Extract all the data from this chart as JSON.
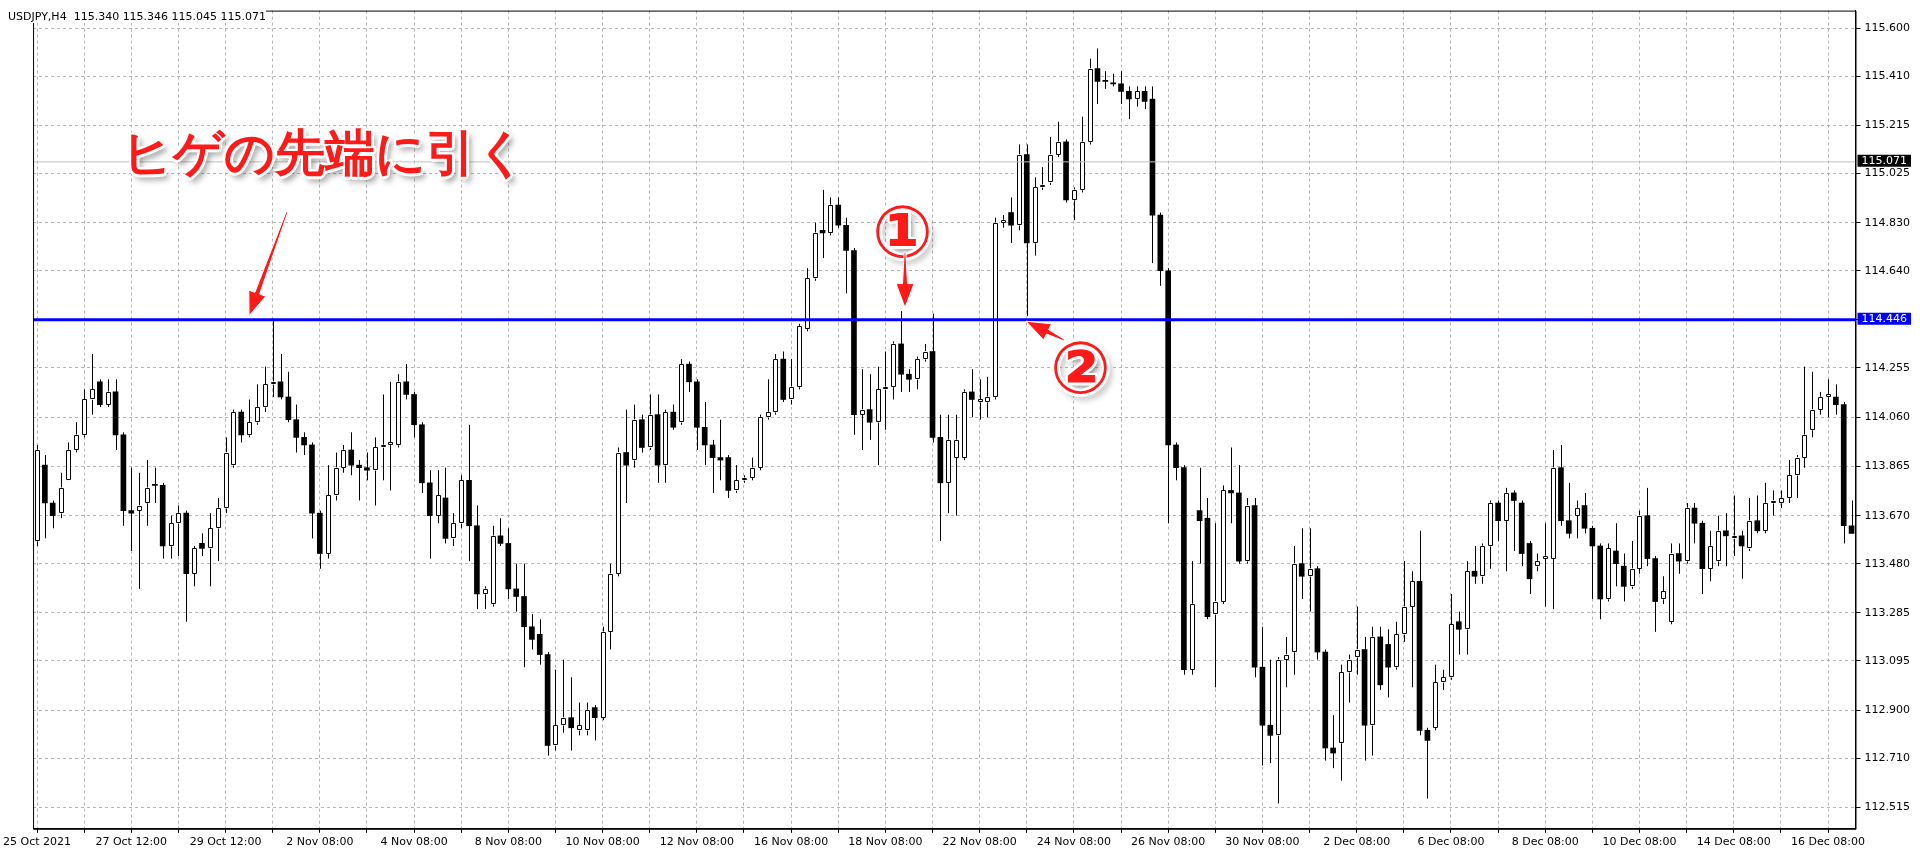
{
  "chart_data": {
    "type": "candlestick",
    "title": "USDJPY,H4",
    "subtitle": "115.340 115.346 115.045 115.071",
    "categories": [
      "25 Oct 2021",
      null,
      null,
      null,
      null,
      null,
      null,
      null,
      null,
      null,
      null,
      null,
      "27 Oct 12:00",
      null,
      null,
      null,
      null,
      null,
      null,
      null,
      null,
      null,
      null,
      null,
      "29 Oct 12:00",
      null,
      null,
      null,
      null,
      null,
      null,
      null,
      null,
      null,
      null,
      null,
      "2 Nov 08:00",
      null,
      null,
      null,
      null,
      null,
      null,
      null,
      null,
      null,
      null,
      null,
      "4 Nov 08:00",
      null,
      null,
      null,
      null,
      null,
      null,
      null,
      null,
      null,
      null,
      null,
      "8 Nov 08:00",
      null,
      null,
      null,
      null,
      null,
      null,
      null,
      null,
      null,
      null,
      null,
      "10 Nov 08:00",
      null,
      null,
      null,
      null,
      null,
      null,
      null,
      null,
      null,
      null,
      null,
      "12 Nov 08:00",
      null,
      null,
      null,
      null,
      null,
      null,
      null,
      null,
      null,
      null,
      null,
      "16 Nov 08:00",
      null,
      null,
      null,
      null,
      null,
      null,
      null,
      null,
      null,
      null,
      null,
      "18 Nov 08:00",
      null,
      null,
      null,
      null,
      null,
      null,
      null,
      null,
      null,
      null,
      null,
      "22 Nov 08:00",
      null,
      null,
      null,
      null,
      null,
      null,
      null,
      null,
      null,
      null,
      null,
      "24 Nov 08:00",
      null,
      null,
      null,
      null,
      null,
      null,
      null,
      null,
      null,
      null,
      null,
      "26 Nov 08:00",
      null,
      null,
      null,
      null,
      null,
      null,
      null,
      null,
      null,
      null,
      null,
      "30 Nov 08:00",
      null,
      null,
      null,
      null,
      null,
      null,
      null,
      null,
      null,
      null,
      null,
      "2 Dec 08:00",
      null,
      null,
      null,
      null,
      null,
      null,
      null,
      null,
      null,
      null,
      null,
      "6 Dec 08:00",
      null,
      null,
      null,
      null,
      null,
      null,
      null,
      null,
      null,
      null,
      null,
      "8 Dec 08:00",
      null,
      null,
      null,
      null,
      null,
      null,
      null,
      null,
      null,
      null,
      null,
      "10 Dec 08:00",
      null,
      null,
      null,
      null,
      null,
      null,
      null,
      null,
      null,
      null,
      null,
      "14 Dec 08:00",
      null,
      null,
      null,
      null,
      null,
      null,
      null,
      null,
      null,
      null,
      null,
      "16 Dec 08:00",
      null,
      null,
      null
    ],
    "series": [
      {
        "color": "#000000",
        "colors": [
          "#ffffff",
          "#000000",
          "#000000",
          "#ffffff",
          "#ffffff",
          "#ffffff",
          "#ffffff",
          "#ffffff",
          "#000000",
          "#ffffff",
          "#000000",
          "#000000",
          "#000000",
          "#ffffff",
          "#ffffff",
          "#000000",
          "#000000",
          "#ffffff",
          "#ffffff",
          "#000000",
          "#ffffff",
          "#000000",
          "#ffffff",
          "#ffffff",
          "#ffffff",
          "#ffffff",
          "#000000",
          "#ffffff",
          "#ffffff",
          "#ffffff",
          "#ffffff",
          "#000000",
          "#000000",
          "#000000",
          "#000000",
          "#000000",
          "#000000",
          "#ffffff",
          "#ffffff",
          "#ffffff",
          "#000000",
          "#000000",
          "#000000",
          "#ffffff",
          "#ffffff",
          "#ffffff",
          "#ffffff",
          "#000000",
          "#000000",
          "#000000",
          "#000000",
          "#ffffff",
          "#000000",
          "#ffffff",
          "#ffffff",
          "#000000",
          "#000000",
          "#ffffff",
          "#ffffff",
          "#000000",
          "#000000",
          "#000000",
          "#000000",
          "#000000",
          "#000000",
          "#000000",
          "#ffffff",
          "#ffffff",
          "#000000",
          "#ffffff",
          "#ffffff",
          "#000000",
          "#ffffff",
          "#ffffff",
          "#ffffff",
          "#000000",
          "#ffffff",
          "#000000",
          "#ffffff",
          "#000000",
          "#ffffff",
          "#000000",
          "#ffffff",
          "#000000",
          "#000000",
          "#000000",
          "#000000",
          "#000000",
          "#000000",
          "#ffffff",
          "#ffffff",
          "#ffffff",
          "#ffffff",
          "#ffffff",
          "#ffffff",
          "#000000",
          "#ffffff",
          "#ffffff",
          "#ffffff",
          "#ffffff",
          "#000000",
          "#ffffff",
          "#000000",
          "#000000",
          "#000000",
          "#ffffff",
          "#000000",
          "#ffffff",
          "#ffffff",
          "#ffffff",
          "#000000",
          "#000000",
          "#ffffff",
          "#ffffff",
          "#000000",
          "#000000",
          "#ffffff",
          "#ffffff",
          "#ffffff",
          "#000000",
          "#ffffff",
          "#ffffff",
          "#ffffff",
          "#ffffff",
          "#000000",
          "#ffffff",
          "#000000",
          "#ffffff",
          "#ffffff",
          "#ffffff",
          "#ffffff",
          "#000000",
          "#ffffff",
          "#ffffff",
          "#ffffff",
          "#000000",
          "#000000",
          "#000000",
          "#000000",
          "#000000",
          "#ffffff",
          "#000000",
          "#000000",
          "#000000",
          "#000000",
          "#000000",
          "#000000",
          "#ffffff",
          "#000000",
          "#000000",
          "#ffffff",
          "#ffffff",
          "#000000",
          "#000000",
          "#ffffff",
          "#000000",
          "#000000",
          "#000000",
          "#ffffff",
          "#ffffff",
          "#ffffff",
          "#000000",
          "#ffffff",
          "#000000",
          "#000000",
          "#000000",
          "#ffffff",
          "#ffffff",
          "#ffffff",
          "#000000",
          "#ffffff",
          "#000000",
          "#000000",
          "#ffffff",
          "#ffffff",
          "#ffffff",
          "#000000",
          "#000000",
          "#ffffff",
          "#ffffff",
          "#ffffff",
          "#000000",
          "#ffffff",
          "#000000",
          "#ffffff",
          "#ffffff",
          "#000000",
          "#ffffff",
          "#000000",
          "#000000",
          "#000000",
          "#ffffff",
          "#ffffff",
          "#ffffff",
          "#000000",
          "#000000",
          "#ffffff",
          "#000000",
          "#000000",
          "#000000",
          "#ffffff",
          "#000000",
          "#000000",
          "#ffffff",
          "#ffffff",
          "#000000",
          "#000000",
          "#ffffff",
          "#ffffff",
          "#000000",
          "#ffffff",
          "#000000",
          "#000000",
          "#ffffff",
          "#ffffff",
          "#000000",
          "#ffffff",
          "#000000",
          "#ffffff",
          "#000000",
          "#ffffff",
          "#ffffff",
          "#ffffff",
          "#ffffff",
          "#ffffff",
          "#ffffff",
          "#ffffff",
          "#ffffff",
          "#ffffff",
          "#000000",
          "#000000",
          "#000000"
        ],
        "ohlc": [
          [
            113.57,
            113.95,
            113.55,
            113.93
          ],
          [
            113.87,
            113.91,
            113.58,
            113.72
          ],
          [
            113.72,
            113.73,
            113.62,
            113.67
          ],
          [
            113.68,
            113.84,
            113.66,
            113.78
          ],
          [
            113.81,
            113.96,
            113.81,
            113.93
          ],
          [
            113.93,
            114.04,
            113.92,
            113.99
          ],
          [
            113.99,
            114.17,
            113.98,
            114.13
          ],
          [
            114.13,
            114.31,
            114.07,
            114.17
          ],
          [
            114.2,
            114.21,
            114.1,
            114.11
          ],
          [
            114.11,
            114.21,
            114.1,
            114.16
          ],
          [
            114.16,
            114.21,
            113.93,
            113.99
          ],
          [
            113.99,
            114.0,
            113.63,
            113.69
          ],
          [
            113.69,
            113.86,
            113.53,
            113.68
          ],
          [
            113.69,
            113.84,
            113.38,
            113.71
          ],
          [
            113.72,
            113.89,
            113.63,
            113.78
          ],
          [
            113.79,
            113.86,
            113.72,
            113.79
          ],
          [
            113.79,
            113.8,
            113.5,
            113.55
          ],
          [
            113.55,
            113.67,
            113.5,
            113.64
          ],
          [
            113.64,
            113.71,
            113.51,
            113.68
          ],
          [
            113.68,
            113.69,
            113.25,
            113.44
          ],
          [
            113.44,
            113.55,
            113.39,
            113.54
          ],
          [
            113.56,
            113.6,
            113.51,
            113.54
          ],
          [
            113.54,
            113.68,
            113.39,
            113.62
          ],
          [
            113.62,
            113.74,
            113.49,
            113.7
          ],
          [
            113.7,
            113.98,
            113.68,
            113.92
          ],
          [
            113.87,
            114.09,
            113.86,
            114.08
          ],
          [
            114.08,
            114.09,
            113.96,
            113.99
          ],
          [
            113.99,
            114.13,
            113.98,
            114.04
          ],
          [
            114.04,
            114.19,
            114.03,
            114.1
          ],
          [
            114.1,
            114.26,
            114.08,
            114.19
          ],
          [
            114.19,
            114.45,
            114.14,
            114.2
          ],
          [
            114.2,
            114.31,
            114.13,
            114.14
          ],
          [
            114.14,
            114.24,
            114.04,
            114.05
          ],
          [
            114.05,
            114.11,
            113.92,
            113.98
          ],
          [
            113.98,
            114.0,
            113.91,
            113.95
          ],
          [
            113.95,
            113.96,
            113.58,
            113.68
          ],
          [
            113.68,
            113.69,
            113.46,
            113.52
          ],
          [
            113.52,
            113.87,
            113.5,
            113.75
          ],
          [
            113.75,
            113.92,
            113.73,
            113.86
          ],
          [
            113.86,
            113.95,
            113.84,
            113.93
          ],
          [
            113.93,
            114.0,
            113.83,
            113.87
          ],
          [
            113.87,
            113.89,
            113.73,
            113.86
          ],
          [
            113.86,
            113.92,
            113.81,
            113.85
          ],
          [
            113.85,
            113.98,
            113.71,
            113.94
          ],
          [
            113.94,
            114.15,
            113.81,
            113.95
          ],
          [
            113.95,
            114.2,
            113.77,
            113.96
          ],
          [
            113.95,
            114.23,
            113.94,
            114.2
          ],
          [
            114.2,
            114.27,
            114.13,
            114.15
          ],
          [
            114.15,
            114.16,
            113.98,
            114.03
          ],
          [
            114.03,
            114.04,
            113.76,
            113.8
          ],
          [
            113.8,
            113.85,
            113.5,
            113.67
          ],
          [
            113.67,
            113.85,
            113.64,
            113.75
          ],
          [
            113.74,
            113.86,
            113.56,
            113.58
          ],
          [
            113.58,
            113.68,
            113.55,
            113.64
          ],
          [
            113.64,
            113.83,
            113.62,
            113.81
          ],
          [
            113.81,
            114.03,
            113.49,
            113.63
          ],
          [
            113.63,
            113.71,
            113.3,
            113.36
          ],
          [
            113.36,
            113.39,
            113.3,
            113.38
          ],
          [
            113.32,
            113.63,
            113.31,
            113.59
          ],
          [
            113.59,
            113.66,
            113.55,
            113.56
          ],
          [
            113.56,
            113.62,
            113.34,
            113.38
          ],
          [
            113.38,
            113.48,
            113.29,
            113.35
          ],
          [
            113.35,
            113.48,
            113.07,
            113.23
          ],
          [
            113.23,
            113.28,
            113.14,
            113.18
          ],
          [
            113.2,
            113.26,
            113.08,
            113.12
          ],
          [
            113.12,
            113.13,
            112.72,
            112.76
          ],
          [
            112.76,
            113.06,
            112.74,
            112.84
          ],
          [
            112.84,
            113.1,
            112.81,
            112.87
          ],
          [
            112.87,
            113.03,
            112.74,
            112.83
          ],
          [
            112.82,
            112.93,
            112.8,
            112.84
          ],
          [
            112.82,
            112.93,
            112.8,
            112.9
          ],
          [
            112.91,
            112.92,
            112.78,
            112.87
          ],
          [
            112.87,
            113.23,
            112.86,
            113.21
          ],
          [
            113.21,
            113.48,
            113.14,
            113.44
          ],
          [
            113.44,
            113.94,
            113.43,
            113.92
          ],
          [
            113.92,
            114.09,
            113.72,
            113.87
          ],
          [
            113.89,
            114.11,
            113.86,
            114.05
          ],
          [
            114.05,
            114.07,
            113.92,
            113.94
          ],
          [
            113.94,
            114.15,
            113.93,
            114.07
          ],
          [
            114.07,
            114.15,
            113.8,
            113.87
          ],
          [
            113.87,
            114.09,
            113.8,
            114.08
          ],
          [
            114.08,
            114.11,
            114.01,
            114.02
          ],
          [
            114.04,
            114.29,
            114.03,
            114.27
          ],
          [
            114.27,
            114.28,
            114.16,
            114.2
          ],
          [
            114.2,
            114.21,
            113.93,
            114.02
          ],
          [
            114.02,
            114.12,
            113.87,
            113.95
          ],
          [
            113.95,
            113.97,
            113.76,
            113.9
          ],
          [
            113.9,
            114.05,
            113.81,
            113.89
          ],
          [
            113.9,
            113.91,
            113.74,
            113.77
          ],
          [
            113.77,
            113.87,
            113.76,
            113.81
          ],
          [
            113.81,
            113.83,
            113.8,
            113.82
          ],
          [
            113.82,
            113.9,
            113.81,
            113.86
          ],
          [
            113.86,
            114.07,
            113.85,
            114.06
          ],
          [
            114.06,
            114.21,
            114.05,
            114.08
          ],
          [
            114.08,
            114.31,
            114.07,
            114.29
          ],
          [
            114.29,
            114.32,
            114.12,
            114.13
          ],
          [
            114.13,
            114.29,
            114.11,
            114.18
          ],
          [
            114.18,
            114.43,
            114.17,
            114.42
          ],
          [
            114.41,
            114.65,
            114.4,
            114.61
          ],
          [
            114.61,
            114.83,
            114.6,
            114.79
          ],
          [
            114.8,
            114.96,
            114.69,
            114.79
          ],
          [
            114.79,
            114.93,
            114.78,
            114.9
          ],
          [
            114.9,
            114.93,
            114.81,
            114.82
          ],
          [
            114.82,
            114.85,
            114.55,
            114.72
          ],
          [
            114.72,
            114.73,
            113.99,
            114.07
          ],
          [
            114.07,
            114.25,
            113.93,
            114.09
          ],
          [
            114.09,
            114.23,
            113.97,
            114.04
          ],
          [
            114.04,
            114.26,
            113.87,
            114.17
          ],
          [
            114.17,
            114.32,
            114.01,
            114.18
          ],
          [
            114.18,
            114.36,
            114.13,
            114.35
          ],
          [
            114.35,
            114.48,
            114.16,
            114.23
          ],
          [
            114.23,
            114.25,
            114.16,
            114.21
          ],
          [
            114.21,
            114.3,
            114.17,
            114.29
          ],
          [
            114.29,
            114.35,
            114.28,
            114.32
          ],
          [
            114.32,
            114.47,
            113.96,
            113.98
          ],
          [
            113.98,
            114.07,
            113.57,
            113.8
          ],
          [
            113.8,
            114.07,
            113.68,
            113.97
          ],
          [
            113.9,
            114.07,
            113.67,
            113.97
          ],
          [
            113.9,
            114.17,
            113.89,
            114.16
          ],
          [
            114.16,
            114.25,
            114.06,
            114.13
          ],
          [
            114.12,
            114.21,
            114.05,
            114.13
          ],
          [
            114.12,
            114.22,
            114.06,
            114.14
          ],
          [
            114.14,
            114.85,
            114.13,
            114.83
          ],
          [
            114.83,
            114.86,
            114.81,
            114.84
          ],
          [
            114.87,
            114.93,
            114.75,
            114.82
          ],
          [
            114.82,
            115.14,
            114.8,
            115.1
          ],
          [
            115.1,
            115.14,
            114.46,
            114.75
          ],
          [
            114.75,
            115.01,
            114.7,
            114.97
          ],
          [
            114.97,
            115.05,
            114.96,
            114.98
          ],
          [
            114.99,
            115.17,
            114.98,
            115.1
          ],
          [
            115.1,
            115.23,
            115.09,
            115.15
          ],
          [
            115.15,
            115.16,
            114.91,
            114.92
          ],
          [
            114.92,
            114.97,
            114.84,
            114.96
          ],
          [
            114.96,
            115.25,
            114.95,
            115.15
          ],
          [
            115.15,
            115.48,
            115.14,
            115.44
          ],
          [
            115.44,
            115.52,
            115.3,
            115.39
          ],
          [
            115.39,
            115.43,
            115.36,
            115.39
          ],
          [
            115.38,
            115.42,
            115.37,
            115.38
          ],
          [
            115.38,
            115.43,
            115.3,
            115.35
          ],
          [
            115.35,
            115.37,
            115.24,
            115.32
          ],
          [
            115.32,
            115.37,
            115.29,
            115.35
          ],
          [
            115.35,
            115.37,
            115.28,
            115.31
          ],
          [
            115.32,
            115.37,
            114.67,
            114.86
          ],
          [
            114.86,
            114.87,
            114.58,
            114.64
          ],
          [
            114.64,
            114.65,
            113.64,
            113.95
          ],
          [
            113.95,
            113.96,
            113.81,
            113.86
          ],
          [
            113.86,
            113.87,
            113.04,
            113.06
          ],
          [
            113.06,
            113.49,
            113.04,
            113.32
          ],
          [
            113.69,
            113.86,
            113.48,
            113.65
          ],
          [
            113.66,
            113.74,
            113.26,
            113.27
          ],
          [
            113.28,
            113.64,
            112.99,
            113.33
          ],
          [
            113.33,
            113.79,
            113.32,
            113.77
          ],
          [
            113.77,
            113.94,
            113.64,
            113.76
          ],
          [
            113.76,
            113.87,
            113.48,
            113.49
          ],
          [
            113.49,
            113.74,
            113.48,
            113.71
          ],
          [
            113.71,
            113.74,
            113.03,
            113.07
          ],
          [
            113.07,
            113.23,
            112.68,
            112.84
          ],
          [
            112.84,
            113.1,
            112.69,
            112.8
          ],
          [
            112.8,
            113.11,
            112.53,
            113.1
          ],
          [
            113.1,
            113.19,
            112.99,
            113.12
          ],
          [
            113.13,
            113.55,
            113.04,
            113.48
          ],
          [
            113.48,
            113.62,
            113.34,
            113.43
          ],
          [
            113.43,
            113.62,
            113.29,
            113.46
          ],
          [
            113.46,
            113.47,
            113.1,
            113.13
          ],
          [
            113.13,
            113.14,
            112.7,
            112.75
          ],
          [
            112.75,
            112.88,
            112.67,
            112.73
          ],
          [
            112.77,
            113.08,
            112.62,
            113.05
          ],
          [
            113.05,
            113.12,
            112.93,
            113.1
          ],
          [
            113.11,
            113.31,
            113.04,
            113.14
          ],
          [
            113.14,
            113.19,
            112.7,
            112.84
          ],
          [
            112.84,
            113.23,
            112.72,
            113.19
          ],
          [
            113.19,
            113.23,
            112.98,
            113.0
          ],
          [
            113.16,
            113.22,
            112.95,
            113.07
          ],
          [
            113.07,
            113.25,
            113.06,
            113.2
          ],
          [
            113.2,
            113.49,
            113.17,
            113.31
          ],
          [
            113.31,
            113.45,
            112.99,
            113.41
          ],
          [
            113.41,
            113.61,
            112.8,
            112.82
          ],
          [
            112.82,
            112.83,
            112.55,
            112.78
          ],
          [
            112.83,
            113.08,
            112.82,
            113.01
          ],
          [
            113.01,
            113.06,
            112.98,
            113.03
          ],
          [
            113.03,
            113.36,
            113.02,
            113.24
          ],
          [
            113.25,
            113.29,
            113.12,
            113.22
          ],
          [
            113.22,
            113.49,
            113.12,
            113.45
          ],
          [
            113.45,
            113.55,
            113.4,
            113.43
          ],
          [
            113.43,
            113.56,
            113.4,
            113.55
          ],
          [
            113.55,
            113.73,
            113.46,
            113.72
          ],
          [
            113.72,
            113.73,
            113.57,
            113.65
          ],
          [
            113.65,
            113.78,
            113.45,
            113.76
          ],
          [
            113.76,
            113.77,
            113.53,
            113.73
          ],
          [
            113.72,
            113.73,
            113.47,
            113.52
          ],
          [
            113.56,
            113.57,
            113.36,
            113.42
          ],
          [
            113.47,
            113.52,
            113.45,
            113.49
          ],
          [
            113.5,
            113.64,
            113.31,
            113.51
          ],
          [
            113.5,
            113.93,
            113.3,
            113.86
          ],
          [
            113.86,
            113.95,
            113.63,
            113.65
          ],
          [
            113.65,
            113.8,
            113.58,
            113.6
          ],
          [
            113.67,
            113.73,
            113.58,
            113.7
          ],
          [
            113.71,
            113.76,
            113.6,
            113.62
          ],
          [
            113.62,
            113.63,
            113.34,
            113.55
          ],
          [
            113.55,
            113.56,
            113.26,
            113.34
          ],
          [
            113.34,
            113.56,
            113.33,
            113.54
          ],
          [
            113.53,
            113.64,
            113.39,
            113.48
          ],
          [
            113.47,
            113.52,
            113.33,
            113.39
          ],
          [
            113.39,
            113.57,
            113.38,
            113.46
          ],
          [
            113.46,
            113.69,
            113.44,
            113.67
          ],
          [
            113.67,
            113.78,
            113.47,
            113.5
          ],
          [
            113.5,
            113.51,
            113.21,
            113.33
          ],
          [
            113.34,
            113.43,
            113.32,
            113.37
          ],
          [
            113.25,
            113.56,
            113.24,
            113.52
          ],
          [
            113.52,
            113.56,
            113.44,
            113.49
          ],
          [
            113.49,
            113.72,
            113.48,
            113.7
          ],
          [
            113.7,
            113.72,
            113.56,
            113.64
          ],
          [
            113.64,
            113.65,
            113.36,
            113.46
          ],
          [
            113.46,
            113.61,
            113.41,
            113.55
          ],
          [
            113.49,
            113.67,
            113.47,
            113.61
          ],
          [
            113.61,
            113.68,
            113.47,
            113.59
          ],
          [
            113.58,
            113.75,
            113.51,
            113.59
          ],
          [
            113.59,
            113.61,
            113.42,
            113.55
          ],
          [
            113.54,
            113.74,
            113.53,
            113.65
          ],
          [
            113.65,
            113.75,
            113.6,
            113.61
          ],
          [
            113.61,
            113.8,
            113.6,
            113.72
          ],
          [
            113.72,
            113.77,
            113.67,
            113.73
          ],
          [
            113.72,
            113.77,
            113.7,
            113.74
          ],
          [
            113.74,
            113.89,
            113.72,
            113.83
          ],
          [
            113.83,
            113.91,
            113.74,
            113.9
          ],
          [
            113.9,
            114.26,
            113.86,
            113.99
          ],
          [
            114.01,
            114.24,
            113.98,
            114.09
          ],
          [
            114.09,
            114.16,
            114.07,
            114.14
          ],
          [
            114.14,
            114.21,
            114.06,
            114.15
          ],
          [
            114.14,
            114.19,
            114.07,
            114.11
          ],
          [
            114.11,
            114.12,
            113.56,
            113.63
          ],
          [
            113.63,
            113.73,
            113.6,
            113.6
          ]
        ]
      }
    ],
    "ylim": [
      112.43,
      115.67
    ],
    "yticks": [
      {
        "value": 115.6,
        "label": "115.600"
      },
      {
        "value": 115.41,
        "label": "115.410"
      },
      {
        "value": 115.215,
        "label": "115.215"
      },
      {
        "value": 115.025,
        "label": "115.025"
      },
      {
        "value": 114.83,
        "label": "114.830"
      },
      {
        "value": 114.64,
        "label": "114.640"
      },
      {
        "value": 114.445,
        "label": null
      },
      {
        "value": 114.255,
        "label": "114.255"
      },
      {
        "value": 114.06,
        "label": "114.060"
      },
      {
        "value": 113.865,
        "label": "113.865"
      },
      {
        "value": 113.67,
        "label": "113.670"
      },
      {
        "value": 113.48,
        "label": "113.480"
      },
      {
        "value": 113.285,
        "label": "113.285"
      },
      {
        "value": 113.095,
        "label": "113.095"
      },
      {
        "value": 112.9,
        "label": "112.900"
      },
      {
        "value": 112.71,
        "label": "112.710"
      },
      {
        "value": 112.515,
        "label": "112.515"
      }
    ],
    "grid": true,
    "ref_lines": [
      {
        "axis": "y",
        "value": 114.446,
        "label": "114.446",
        "color": "#0000ff"
      },
      {
        "axis": "y",
        "value": 115.071,
        "label": "115.071",
        "color": "#c0c0c0"
      }
    ],
    "annotations": [
      {
        "text": "ヒゲの先端に引く",
        "y": 114.45
      },
      {
        "text": "①",
        "y": 114.47
      },
      {
        "text": "②",
        "y": 114.46
      }
    ]
  }
}
